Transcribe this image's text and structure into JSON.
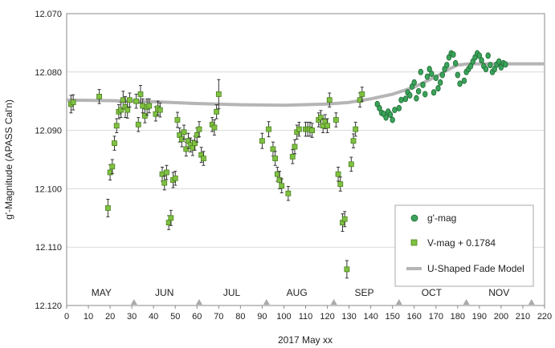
{
  "chart_data": {
    "type": "scatter",
    "xlabel": "2017 May xx",
    "ylabel": "g'-Magnitude (APASS Cal'n)",
    "xlim": [
      0,
      220
    ],
    "ylim": [
      12.07,
      12.12
    ],
    "y_inverted": true,
    "grid": "horizontal",
    "x_ticks": [
      "0",
      "10",
      "20",
      "30",
      "40",
      "50",
      "60",
      "70",
      "80",
      "90",
      "100",
      "110",
      "120",
      "130",
      "140",
      "150",
      "160",
      "170",
      "180",
      "190",
      "200",
      "210",
      "220"
    ],
    "y_ticks": [
      "12.070",
      "12.080",
      "12.090",
      "12.100",
      "12.110",
      "12.120"
    ],
    "month_labels": [
      {
        "label": "MAY",
        "x": 16
      },
      {
        "label": "JUN",
        "x": 45
      },
      {
        "label": "JUL",
        "x": 76
      },
      {
        "label": "AUG",
        "x": 106
      },
      {
        "label": "SEP",
        "x": 137
      },
      {
        "label": "OCT",
        "x": 168
      },
      {
        "label": "NOV",
        "x": 199
      }
    ],
    "month_markers_x": [
      31,
      61,
      92,
      123,
      153,
      184,
      214
    ],
    "legend_position": "bottom-right",
    "series": [
      {
        "name": "g'-mag",
        "marker": "circle",
        "color": "#3aa35a",
        "points": [
          [
            143,
            12.0855
          ],
          [
            144,
            12.0862
          ],
          [
            145,
            12.087
          ],
          [
            146,
            12.0872
          ],
          [
            147,
            12.0878
          ],
          [
            148,
            12.0868
          ],
          [
            149,
            12.0873
          ],
          [
            150,
            12.0882
          ],
          [
            151,
            12.0865
          ],
          [
            153,
            12.0862
          ],
          [
            154,
            12.0848
          ],
          [
            156,
            12.0846
          ],
          [
            157,
            12.0835
          ],
          [
            158,
            12.084
          ],
          [
            159,
            12.0825
          ],
          [
            160,
            12.0818
          ],
          [
            161,
            12.0845
          ],
          [
            162,
            12.0833
          ],
          [
            163,
            12.08
          ],
          [
            164,
            12.0822
          ],
          [
            165,
            12.0838
          ],
          [
            166,
            12.0808
          ],
          [
            167,
            12.0795
          ],
          [
            168,
            12.0803
          ],
          [
            169,
            12.0835
          ],
          [
            170,
            12.081
          ],
          [
            171,
            12.0828
          ],
          [
            172,
            12.0818
          ],
          [
            173,
            12.0805
          ],
          [
            174,
            12.0795
          ],
          [
            175,
            12.0788
          ],
          [
            176,
            12.0775
          ],
          [
            177,
            12.0768
          ],
          [
            178,
            12.077
          ],
          [
            179,
            12.0785
          ],
          [
            180,
            12.0805
          ],
          [
            181,
            12.082
          ],
          [
            183,
            12.0815
          ],
          [
            184,
            12.08
          ],
          [
            185,
            12.0795
          ],
          [
            186,
            12.079
          ],
          [
            187,
            12.0782
          ],
          [
            188,
            12.0775
          ],
          [
            189,
            12.0768
          ],
          [
            190,
            12.0772
          ],
          [
            191,
            12.078
          ],
          [
            192,
            12.079
          ],
          [
            193,
            12.0795
          ],
          [
            194,
            12.0772
          ],
          [
            195,
            12.0788
          ],
          [
            196,
            12.08
          ],
          [
            197,
            12.0795
          ],
          [
            198,
            12.0787
          ],
          [
            199,
            12.0782
          ],
          [
            200,
            12.0792
          ],
          [
            201,
            12.0785
          ],
          [
            202,
            12.0787
          ]
        ]
      },
      {
        "name": "V-mag + 0.1784",
        "marker": "square",
        "color": "#7fc241",
        "error_color": "#333333",
        "points": [
          [
            2,
            12.0855,
            0.0015
          ],
          [
            3,
            12.0852,
            0.0013
          ],
          [
            15,
            12.0842,
            0.0012
          ],
          [
            19,
            12.1033,
            0.0015
          ],
          [
            20,
            12.0972,
            0.0013
          ],
          [
            21,
            12.0962,
            0.0012
          ],
          [
            22,
            12.0922,
            0.0012
          ],
          [
            23,
            12.0892,
            0.0012
          ],
          [
            24,
            12.0868,
            0.0012
          ],
          [
            25,
            12.0865,
            0.0013
          ],
          [
            26,
            12.0848,
            0.0015
          ],
          [
            27,
            12.086,
            0.0018
          ],
          [
            28,
            12.0865,
            0.0014
          ],
          [
            29,
            12.0848,
            0.0012
          ],
          [
            32,
            12.085,
            0.0012
          ],
          [
            33,
            12.089,
            0.0012
          ],
          [
            34,
            12.0838,
            0.0015
          ],
          [
            35,
            12.0858,
            0.0012
          ],
          [
            36,
            12.0875,
            0.0012
          ],
          [
            37,
            12.086,
            0.0014
          ],
          [
            38,
            12.0858,
            0.0012
          ],
          [
            41,
            12.0872,
            0.0012
          ],
          [
            42,
            12.0862,
            0.0012
          ],
          [
            43,
            12.0865,
            0.0012
          ],
          [
            44,
            12.0975,
            0.0012
          ],
          [
            45,
            12.099,
            0.0012
          ],
          [
            46,
            12.0972,
            0.0012
          ],
          [
            47,
            12.1058,
            0.0012
          ],
          [
            48,
            12.105,
            0.0013
          ],
          [
            49,
            12.0985,
            0.0013
          ],
          [
            50,
            12.0982,
            0.0012
          ],
          [
            51,
            12.0882,
            0.0013
          ],
          [
            52,
            12.0908,
            0.0012
          ],
          [
            53,
            12.0915,
            0.0013
          ],
          [
            54,
            12.0903,
            0.0012
          ],
          [
            55,
            12.0932,
            0.0012
          ],
          [
            56,
            12.0918,
            0.0013
          ],
          [
            57,
            12.0925,
            0.0012
          ],
          [
            58,
            12.093,
            0.0013
          ],
          [
            59,
            12.0922,
            0.0012
          ],
          [
            60,
            12.0908,
            0.0012
          ],
          [
            61,
            12.0898,
            0.0013
          ],
          [
            62,
            12.0942,
            0.0013
          ],
          [
            63,
            12.0948,
            0.0012
          ],
          [
            67,
            12.089,
            0.0012
          ],
          [
            68,
            12.0895,
            0.0013
          ],
          [
            69,
            12.0868,
            0.0012
          ],
          [
            70,
            12.0838,
            0.0025
          ],
          [
            90,
            12.0918,
            0.0013
          ],
          [
            93,
            12.0898,
            0.0013
          ],
          [
            95,
            12.0932,
            0.0012
          ],
          [
            96,
            12.0948,
            0.0012
          ],
          [
            97,
            12.0975,
            0.0012
          ],
          [
            98,
            12.0985,
            0.0015
          ],
          [
            99,
            12.0995,
            0.0012
          ],
          [
            102,
            12.1008,
            0.0012
          ],
          [
            104,
            12.0945,
            0.0012
          ],
          [
            105,
            12.0928,
            0.0012
          ],
          [
            106,
            12.0903,
            0.0012
          ],
          [
            107,
            12.0898,
            0.0012
          ],
          [
            110,
            12.0898,
            0.0012
          ],
          [
            111,
            12.0898,
            0.0012
          ],
          [
            112,
            12.0898,
            0.0012
          ],
          [
            113,
            12.09,
            0.0012
          ],
          [
            116,
            12.0882,
            0.0012
          ],
          [
            117,
            12.0878,
            0.0012
          ],
          [
            118,
            12.0892,
            0.0012
          ],
          [
            119,
            12.0885,
            0.0012
          ],
          [
            120,
            12.0892,
            0.0012
          ],
          [
            121,
            12.0848,
            0.0012
          ],
          [
            124,
            12.0882,
            0.0012
          ],
          [
            125,
            12.0975,
            0.0012
          ],
          [
            126,
            12.0992,
            0.0012
          ],
          [
            127,
            12.1058,
            0.0015
          ],
          [
            128,
            12.1052,
            0.0013
          ],
          [
            129,
            12.1138,
            0.0015
          ],
          [
            131,
            12.0958,
            0.0012
          ],
          [
            132,
            12.0918,
            0.0012
          ],
          [
            133,
            12.0898,
            0.0012
          ],
          [
            135,
            12.0848,
            0.0012
          ],
          [
            136,
            12.0838,
            0.0012
          ]
        ]
      },
      {
        "name": "U-Shaped Fade Model",
        "marker": "line",
        "color": "#b5b5b5",
        "points": [
          [
            0,
            12.0848
          ],
          [
            20,
            12.0849
          ],
          [
            40,
            12.0851
          ],
          [
            60,
            12.0854
          ],
          [
            80,
            12.0856
          ],
          [
            100,
            12.0857
          ],
          [
            120,
            12.0855
          ],
          [
            130,
            12.0852
          ],
          [
            140,
            12.0846
          ],
          [
            150,
            12.0838
          ],
          [
            160,
            12.0826
          ],
          [
            170,
            12.0808
          ],
          [
            176,
            12.0795
          ],
          [
            180,
            12.0788
          ],
          [
            185,
            12.0786
          ],
          [
            200,
            12.0786
          ],
          [
            220,
            12.0786
          ]
        ]
      }
    ]
  }
}
